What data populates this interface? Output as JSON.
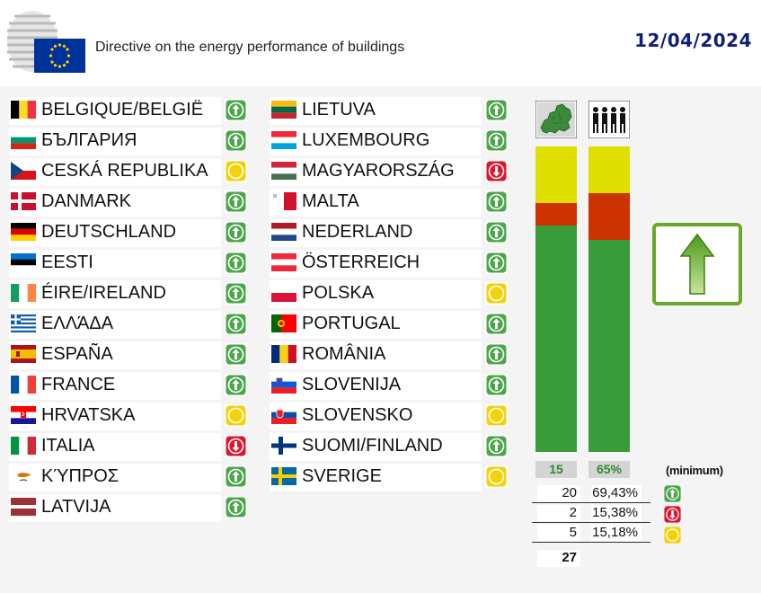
{
  "header": {
    "title": "Directive on the energy performance of buildings",
    "date": "12/04/2024"
  },
  "countries_col1": [
    {
      "name": "BELGIQUE/BELGIË",
      "vote": "yes",
      "flag": "flag-belgium"
    },
    {
      "name": "БЪЛГАРИЯ",
      "vote": "yes",
      "flag": "flag-bulgaria"
    },
    {
      "name": "CESKÁ REPUBLIKA",
      "vote": "abstain",
      "flag": "flag-czechia"
    },
    {
      "name": "DANMARK",
      "vote": "yes",
      "flag": "flag-denmark"
    },
    {
      "name": "DEUTSCHLAND",
      "vote": "yes",
      "flag": "flag-germany"
    },
    {
      "name": "EESTI",
      "vote": "yes",
      "flag": "flag-estonia"
    },
    {
      "name": "ÉIRE/IRELAND",
      "vote": "yes",
      "flag": "flag-ireland"
    },
    {
      "name": "ΕΛΛΆΔΑ",
      "vote": "yes",
      "flag": "flag-greece"
    },
    {
      "name": "ESPAÑA",
      "vote": "yes",
      "flag": "flag-spain"
    },
    {
      "name": "FRANCE",
      "vote": "yes",
      "flag": "flag-france"
    },
    {
      "name": "HRVATSKA",
      "vote": "abstain",
      "flag": "flag-croatia"
    },
    {
      "name": "ITALIA",
      "vote": "no",
      "flag": "flag-italy"
    },
    {
      "name": "ΚΎΠΡΟΣ",
      "vote": "yes",
      "flag": "flag-cyprus"
    },
    {
      "name": "LATVIJA",
      "vote": "yes",
      "flag": "flag-latvia"
    }
  ],
  "countries_col2": [
    {
      "name": "LIETUVA",
      "vote": "yes",
      "flag": "flag-lithuania"
    },
    {
      "name": "LUXEMBOURG",
      "vote": "yes",
      "flag": "flag-luxembourg"
    },
    {
      "name": "MAGYARORSZÁG",
      "vote": "no",
      "flag": "flag-hungary"
    },
    {
      "name": "MALTA",
      "vote": "yes",
      "flag": "flag-malta"
    },
    {
      "name": "NEDERLAND",
      "vote": "yes",
      "flag": "flag-netherlands"
    },
    {
      "name": "ÖSTERREICH",
      "vote": "yes",
      "flag": "flag-austria"
    },
    {
      "name": "POLSKA",
      "vote": "abstain",
      "flag": "flag-poland"
    },
    {
      "name": "PORTUGAL",
      "vote": "yes",
      "flag": "flag-portugal"
    },
    {
      "name": "ROMÂNIA",
      "vote": "yes",
      "flag": "flag-romania"
    },
    {
      "name": "SLOVENIJA",
      "vote": "yes",
      "flag": "flag-slovenia"
    },
    {
      "name": "SLOVENSKO",
      "vote": "abstain",
      "flag": "flag-slovakia"
    },
    {
      "name": "SUOMI/FINLAND",
      "vote": "yes",
      "flag": "flag-finland"
    },
    {
      "name": "SVERIGE",
      "vote": "abstain",
      "flag": "flag-sweden"
    }
  ],
  "chart_data": {
    "type": "bar",
    "categories": [
      "member-states",
      "population"
    ],
    "stacked_fractions": [
      {
        "yes": 0.741,
        "no": 0.074,
        "abstain": 0.185
      },
      {
        "yes": 0.6943,
        "no": 0.1538,
        "abstain": 0.1518
      }
    ],
    "threshold_labels": [
      "15",
      "65%"
    ],
    "minimum_label": "(minimum)"
  },
  "tally": [
    {
      "count": "20",
      "pct": "69,43%",
      "vote": "yes"
    },
    {
      "count": "2",
      "pct": "15,38%",
      "vote": "no"
    },
    {
      "count": "5",
      "pct": "15,18%",
      "vote": "abstain"
    }
  ],
  "total": "27",
  "result": "adopted-up-arrow",
  "colors": {
    "yes": "#3a9b3a",
    "no": "#cc3300",
    "abstain": "#e0e000",
    "date": "#0f1f7a",
    "result_border": "#6aa82a"
  }
}
